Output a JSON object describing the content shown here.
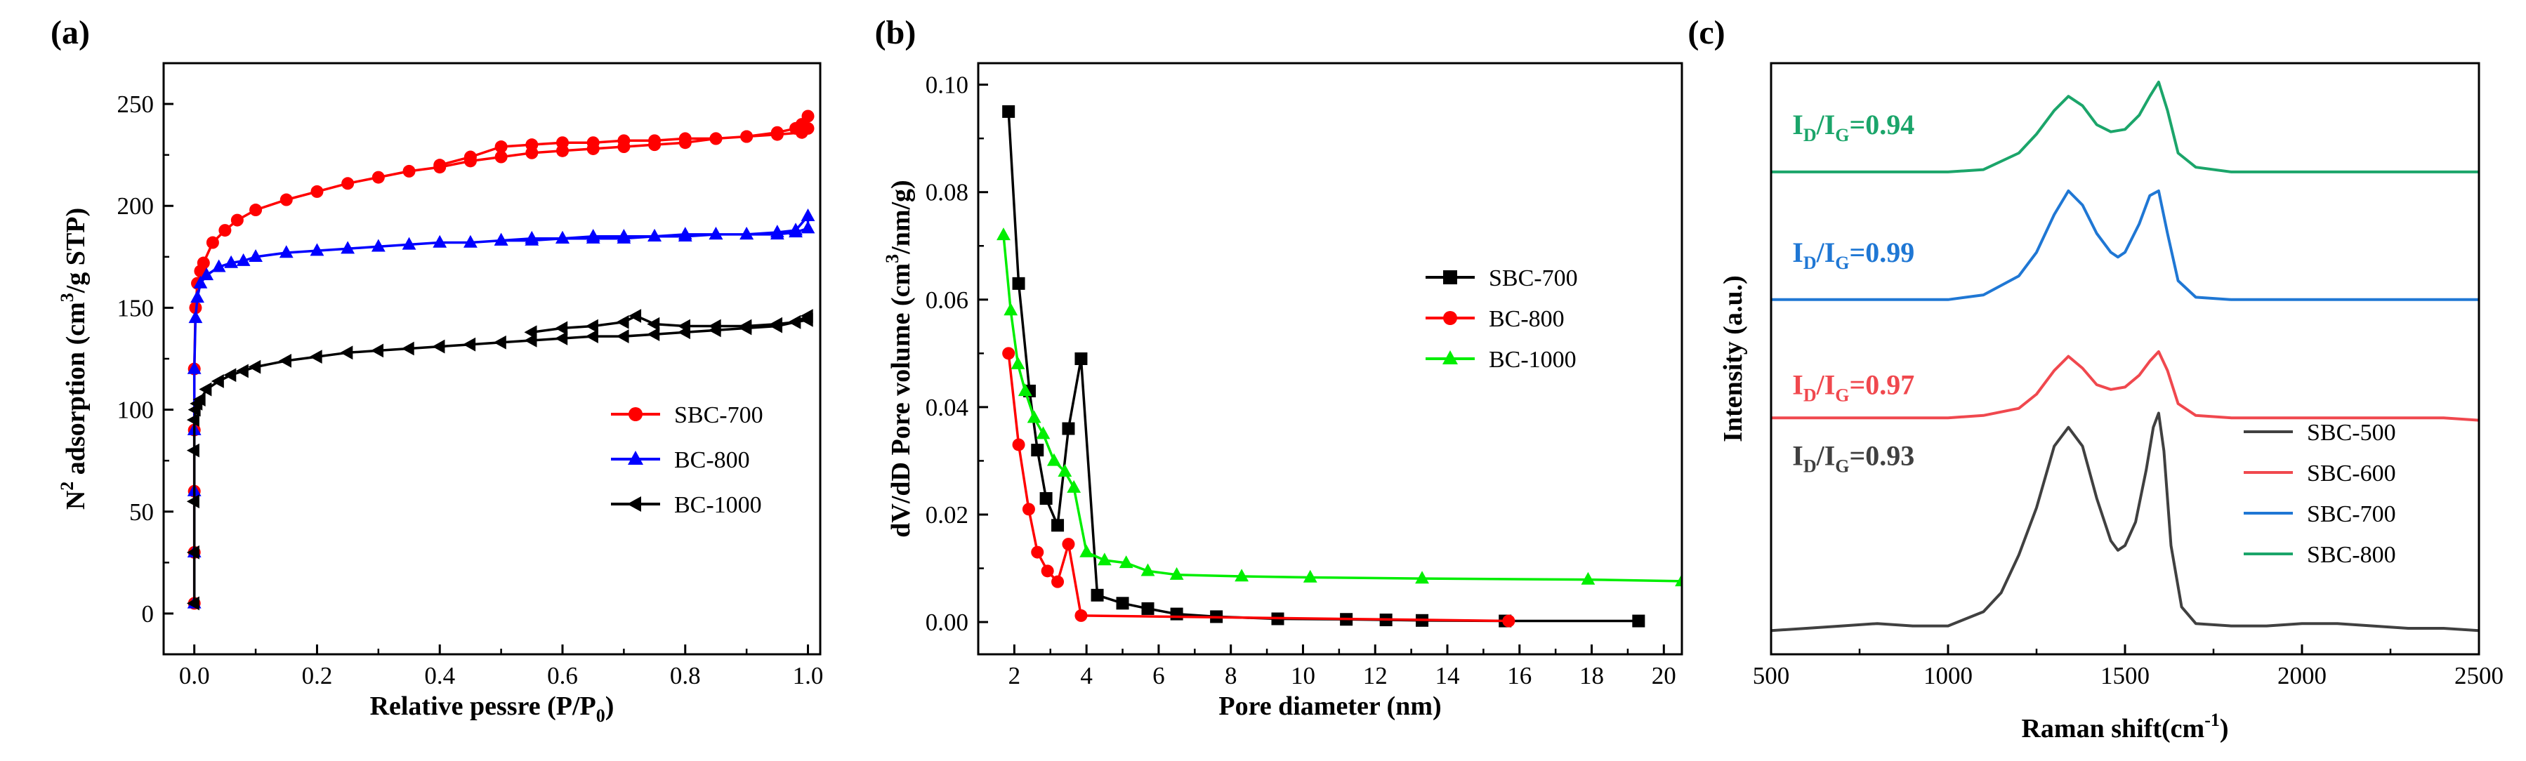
{
  "chart_data": [
    {
      "panel": "(a)",
      "type": "line",
      "xlabel": "Relative pessre (P/P",
      "xlabel_sub": "0",
      "xlabel_end": ")",
      "ylabel_prefix": "N",
      "ylabel_sup1": "2",
      "ylabel_mid": " adsorption (cm",
      "ylabel_sup2": "3",
      "ylabel_end": "/g STP)",
      "xlim": [
        -0.05,
        1.02
      ],
      "ylim": [
        -20,
        270
      ],
      "xticks": [
        "0.0",
        "0.2",
        "0.4",
        "0.6",
        "0.8",
        "1.0"
      ],
      "yticks": [
        "0",
        "50",
        "100",
        "150",
        "200",
        "250"
      ],
      "legend_position": "lower-right",
      "series": [
        {
          "name": "SBC-700",
          "color": "#ff0000",
          "marker": "circle",
          "x": [
            0.0,
            0.0,
            0.0,
            0.0,
            0.0,
            0.002,
            0.005,
            0.01,
            0.015,
            0.03,
            0.05,
            0.07,
            0.1,
            0.15,
            0.2,
            0.25,
            0.3,
            0.35,
            0.4,
            0.45,
            0.5,
            0.55,
            0.6,
            0.65,
            0.7,
            0.75,
            0.8,
            0.85,
            0.9,
            0.95,
            0.98,
            0.99,
            1.0,
            1.0,
            0.99,
            0.95,
            0.9,
            0.85,
            0.8,
            0.75,
            0.7,
            0.65,
            0.6,
            0.55,
            0.5,
            0.45,
            0.4
          ],
          "y": [
            5,
            30,
            60,
            90,
            120,
            150,
            162,
            168,
            172,
            182,
            188,
            193,
            198,
            203,
            207,
            211,
            214,
            217,
            219,
            222,
            224,
            226,
            227,
            228,
            229,
            230,
            231,
            233,
            234,
            236,
            238,
            240,
            244,
            238,
            236,
            235,
            234,
            233,
            233,
            232,
            232,
            231,
            231,
            230,
            229,
            224,
            220
          ]
        },
        {
          "name": "BC-800",
          "color": "#0000ff",
          "marker": "triangle-up",
          "x": [
            0.0,
            0.0,
            0.0,
            0.0,
            0.0,
            0.002,
            0.005,
            0.01,
            0.02,
            0.04,
            0.06,
            0.08,
            0.1,
            0.15,
            0.2,
            0.25,
            0.3,
            0.35,
            0.4,
            0.45,
            0.5,
            0.55,
            0.6,
            0.65,
            0.7,
            0.75,
            0.8,
            0.85,
            0.9,
            0.95,
            0.98,
            1.0,
            1.0,
            0.98,
            0.95,
            0.9,
            0.85,
            0.8,
            0.75,
            0.7,
            0.65,
            0.6,
            0.55,
            0.5
          ],
          "y": [
            5,
            30,
            60,
            90,
            120,
            145,
            155,
            162,
            166,
            170,
            172,
            173,
            175,
            177,
            178,
            179,
            180,
            181,
            182,
            182,
            183,
            183,
            184,
            184,
            184,
            185,
            185,
            186,
            186,
            187,
            188,
            195,
            189,
            187,
            186,
            186,
            186,
            186,
            185,
            185,
            185,
            184,
            184,
            183
          ]
        },
        {
          "name": "BC-1000",
          "color": "#000000",
          "marker": "triangle-left",
          "x": [
            0.0,
            0.0,
            0.0,
            0.0,
            0.0,
            0.002,
            0.005,
            0.01,
            0.02,
            0.04,
            0.06,
            0.08,
            0.1,
            0.15,
            0.2,
            0.25,
            0.3,
            0.35,
            0.4,
            0.45,
            0.5,
            0.55,
            0.6,
            0.65,
            0.7,
            0.75,
            0.8,
            0.85,
            0.9,
            0.95,
            0.98,
            1.0,
            1.0,
            0.98,
            0.95,
            0.9,
            0.85,
            0.8,
            0.75,
            0.72,
            0.7,
            0.65,
            0.6,
            0.55
          ],
          "y": [
            5,
            30,
            55,
            80,
            95,
            100,
            103,
            105,
            110,
            114,
            117,
            119,
            121,
            124,
            126,
            128,
            129,
            130,
            131,
            132,
            133,
            134,
            135,
            136,
            136,
            137,
            138,
            139,
            140,
            141,
            143,
            146,
            144,
            143,
            142,
            141,
            141,
            141,
            142,
            146,
            143,
            141,
            140,
            138
          ]
        }
      ]
    },
    {
      "panel": "(b)",
      "type": "line",
      "xlabel": "Pore diameter (nm)",
      "ylabel_prefix": "dV/dD Pore volume (cm",
      "ylabel_sup1": "3",
      "ylabel_end": "/nm/g)",
      "xlim": [
        1.0,
        20.5
      ],
      "ylim": [
        -0.006,
        0.104
      ],
      "xticks": [
        "2",
        "4",
        "6",
        "8",
        "10",
        "12",
        "14",
        "16",
        "18",
        "20"
      ],
      "yticks": [
        "0.00",
        "0.02",
        "0.04",
        "0.06",
        "0.08",
        "0.10"
      ],
      "legend_position": "top-right",
      "series": [
        {
          "name": "SBC-700",
          "color": "#000000",
          "marker": "square",
          "x": [
            1.84,
            2.12,
            2.42,
            2.64,
            2.88,
            3.2,
            3.5,
            3.85,
            4.3,
            5.0,
            5.7,
            6.5,
            7.6,
            9.3,
            11.2,
            12.3,
            13.3,
            15.6,
            19.3
          ],
          "y": [
            0.095,
            0.063,
            0.043,
            0.032,
            0.023,
            0.018,
            0.036,
            0.049,
            0.005,
            0.0035,
            0.0025,
            0.0015,
            0.001,
            0.0006,
            0.0005,
            0.0004,
            0.0003,
            0.0002,
            0.0002
          ]
        },
        {
          "name": "BC-800",
          "color": "#ff0000",
          "marker": "circle",
          "x": [
            1.84,
            2.12,
            2.4,
            2.64,
            2.92,
            3.2,
            3.5,
            3.85,
            15.7
          ],
          "y": [
            0.05,
            0.033,
            0.021,
            0.013,
            0.0095,
            0.0075,
            0.0145,
            0.0012,
            0.0002
          ]
        },
        {
          "name": "BC-1000",
          "color": "#00ee00",
          "marker": "triangle-up",
          "x": [
            1.7,
            1.9,
            2.1,
            2.3,
            2.55,
            2.8,
            3.1,
            3.4,
            3.65,
            4.0,
            4.5,
            5.1,
            5.7,
            6.5,
            8.3,
            10.2,
            13.3,
            17.9,
            20.5
          ],
          "y": [
            0.072,
            0.058,
            0.048,
            0.043,
            0.038,
            0.035,
            0.03,
            0.028,
            0.025,
            0.013,
            0.0115,
            0.011,
            0.0095,
            0.0088,
            0.0085,
            0.0083,
            0.0081,
            0.0079,
            0.0076
          ]
        }
      ]
    },
    {
      "panel": "(c)",
      "type": "line",
      "xlabel": "Raman shift(cm",
      "xlabel_sup": "-1",
      "xlabel_end": ")",
      "ylabel": "Intensity (a.u.)",
      "xlim": [
        500,
        2500
      ],
      "ylim": [
        -0.5,
        12.0
      ],
      "xticks": [
        "500",
        "1000",
        "1500",
        "2000",
        "2500"
      ],
      "yticks": [],
      "legend_position": "lower-right",
      "annotations": [
        {
          "base": "I",
          "sub1": "D",
          "mid": "/I",
          "sub2": "G",
          "tail": "=0.94",
          "color": "#1ba56a",
          "x": 560,
          "y": 10.5
        },
        {
          "base": "I",
          "sub1": "D",
          "mid": "/I",
          "sub2": "G",
          "tail": "=0.99",
          "color": "#1f77d4",
          "x": 560,
          "y": 7.8
        },
        {
          "base": "I",
          "sub1": "D",
          "mid": "/I",
          "sub2": "G",
          "tail": "=0.97",
          "color": "#f0484e",
          "x": 560,
          "y": 5.0
        },
        {
          "base": "I",
          "sub1": "D",
          "mid": "/I",
          "sub2": "G",
          "tail": "=0.93",
          "color": "#404040",
          "x": 560,
          "y": 3.5
        }
      ],
      "series": [
        {
          "name": "SBC-500",
          "color": "#404040",
          "x": [
            500,
            600,
            700,
            800,
            900,
            1000,
            1100,
            1150,
            1200,
            1250,
            1300,
            1340,
            1380,
            1420,
            1460,
            1480,
            1500,
            1530,
            1560,
            1580,
            1595,
            1610,
            1630,
            1660,
            1700,
            1800,
            1900,
            2000,
            2100,
            2200,
            2300,
            2400,
            2500
          ],
          "y": [
            0.0,
            0.05,
            0.1,
            0.15,
            0.1,
            0.1,
            0.4,
            0.8,
            1.6,
            2.6,
            3.9,
            4.3,
            3.9,
            2.8,
            1.9,
            1.7,
            1.8,
            2.3,
            3.4,
            4.3,
            4.6,
            3.8,
            1.8,
            0.5,
            0.15,
            0.1,
            0.1,
            0.15,
            0.15,
            0.1,
            0.05,
            0.05,
            0.0
          ]
        },
        {
          "name": "SBC-600",
          "color": "#f0484e",
          "x": [
            500,
            700,
            900,
            1000,
            1100,
            1200,
            1250,
            1300,
            1340,
            1380,
            1420,
            1460,
            1500,
            1540,
            1570,
            1595,
            1620,
            1650,
            1700,
            1800,
            2000,
            2200,
            2400,
            2500
          ],
          "y": [
            4.5,
            4.5,
            4.5,
            4.5,
            4.55,
            4.7,
            5.0,
            5.5,
            5.8,
            5.55,
            5.2,
            5.1,
            5.15,
            5.4,
            5.7,
            5.9,
            5.5,
            4.8,
            4.55,
            4.5,
            4.5,
            4.5,
            4.5,
            4.45
          ]
        },
        {
          "name": "SBC-700",
          "color": "#1f77d4",
          "x": [
            500,
            700,
            900,
            1000,
            1100,
            1200,
            1250,
            1300,
            1340,
            1380,
            1420,
            1460,
            1480,
            1500,
            1540,
            1570,
            1595,
            1620,
            1650,
            1700,
            1800,
            2000,
            2200,
            2400,
            2500
          ],
          "y": [
            7.0,
            7.0,
            7.0,
            7.0,
            7.1,
            7.5,
            8.0,
            8.8,
            9.3,
            9.0,
            8.4,
            8.0,
            7.9,
            8.0,
            8.6,
            9.2,
            9.3,
            8.4,
            7.4,
            7.05,
            7.0,
            7.0,
            7.0,
            7.0,
            7.0
          ]
        },
        {
          "name": "SBC-800",
          "color": "#1ba56a",
          "x": [
            500,
            700,
            900,
            1000,
            1100,
            1200,
            1250,
            1300,
            1340,
            1380,
            1420,
            1460,
            1500,
            1540,
            1570,
            1595,
            1620,
            1650,
            1700,
            1800,
            2000,
            2200,
            2400,
            2500
          ],
          "y": [
            9.7,
            9.7,
            9.7,
            9.7,
            9.75,
            10.1,
            10.5,
            11.0,
            11.3,
            11.1,
            10.7,
            10.55,
            10.6,
            10.9,
            11.3,
            11.6,
            11.0,
            10.1,
            9.8,
            9.7,
            9.7,
            9.7,
            9.7,
            9.7
          ]
        }
      ]
    }
  ]
}
